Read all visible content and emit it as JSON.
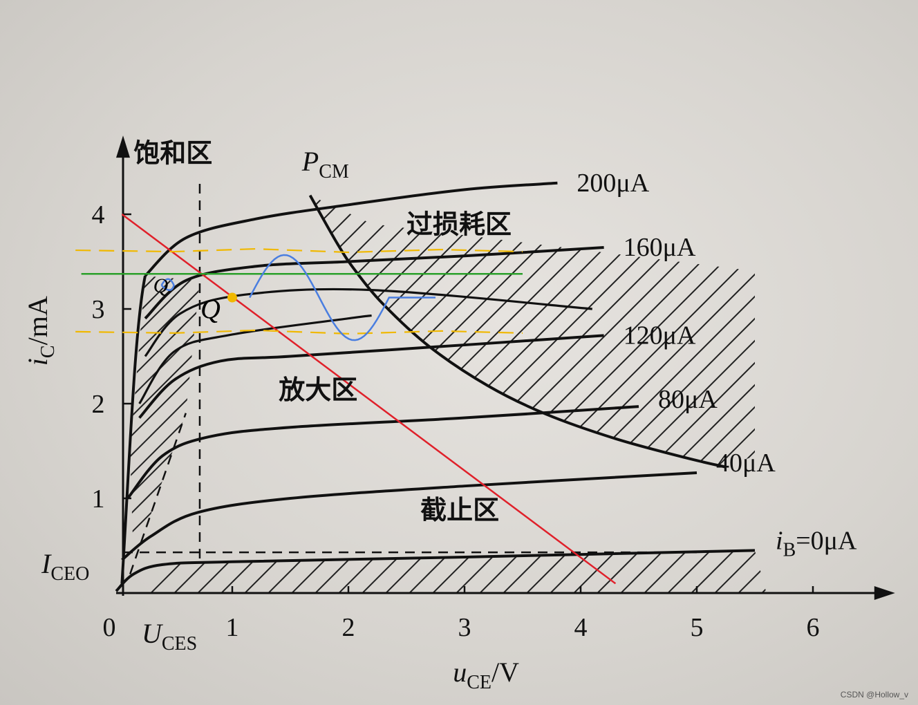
{
  "chart_data": {
    "type": "line",
    "xlabel": "u",
    "xlabel_sub": "CE",
    "xlabel_unit": "/V",
    "ylabel": "i",
    "ylabel_sub": "C",
    "ylabel_unit": "/mA",
    "xlim": [
      0,
      6.6
    ],
    "ylim": [
      0,
      4.7
    ],
    "x_ticks": [
      {
        "value": 0,
        "label": "0"
      },
      {
        "value": 1,
        "label": "1"
      },
      {
        "value": 2,
        "label": "2"
      },
      {
        "value": 3,
        "label": "3"
      },
      {
        "value": 4,
        "label": "4"
      },
      {
        "value": 5,
        "label": "5"
      },
      {
        "value": 6,
        "label": "6"
      }
    ],
    "y_ticks": [
      {
        "value": 1,
        "label": "1"
      },
      {
        "value": 2,
        "label": "2"
      },
      {
        "value": 3,
        "label": "3"
      },
      {
        "value": 4,
        "label": "4"
      }
    ],
    "uces_label": "U",
    "uces_sub": "CES",
    "uces_value": 0.72,
    "iceo_label": "I",
    "iceo_sub": "CEO",
    "iceo_value": 0.43,
    "series": [
      {
        "name": "0μA",
        "points": [
          [
            0,
            0.02
          ],
          [
            0.15,
            0.2
          ],
          [
            0.4,
            0.3
          ],
          [
            1,
            0.33
          ],
          [
            3,
            0.38
          ],
          [
            5.5,
            0.45
          ]
        ]
      },
      {
        "name": "40μA",
        "points": [
          [
            0.05,
            0.35
          ],
          [
            0.3,
            0.6
          ],
          [
            0.7,
            0.85
          ],
          [
            1.5,
            1.0
          ],
          [
            3,
            1.13
          ],
          [
            5,
            1.27
          ]
        ]
      },
      {
        "name": "80μA",
        "points": [
          [
            0.1,
            1.0
          ],
          [
            0.4,
            1.45
          ],
          [
            0.8,
            1.65
          ],
          [
            1.5,
            1.75
          ],
          [
            3,
            1.85
          ],
          [
            4.5,
            1.97
          ]
        ]
      },
      {
        "name": "120μA",
        "points": [
          [
            0.2,
            1.85
          ],
          [
            0.5,
            2.25
          ],
          [
            0.9,
            2.45
          ],
          [
            1.5,
            2.5
          ],
          [
            3,
            2.62
          ],
          [
            4.2,
            2.72
          ]
        ]
      },
      {
        "name": "160μA",
        "points": [
          [
            0.25,
            2.9
          ],
          [
            0.6,
            3.3
          ],
          [
            1.2,
            3.45
          ],
          [
            2,
            3.5
          ],
          [
            3,
            3.56
          ],
          [
            4.2,
            3.65
          ]
        ]
      },
      {
        "name": "200μA",
        "points": [
          [
            0.25,
            3.35
          ],
          [
            0.6,
            3.75
          ],
          [
            1.2,
            3.95
          ],
          [
            2,
            4.1
          ],
          [
            3,
            4.26
          ],
          [
            3.8,
            4.33
          ]
        ]
      }
    ],
    "extra_curves": [
      [
        [
          0.2,
          2.0
        ],
        [
          0.5,
          2.55
        ],
        [
          1.0,
          2.73
        ],
        [
          2.0,
          2.9
        ],
        [
          2.2,
          2.93
        ]
      ],
      [
        [
          0.25,
          2.5
        ],
        [
          0.55,
          2.95
        ],
        [
          1.1,
          3.15
        ],
        [
          2.2,
          3.2
        ],
        [
          4.1,
          3.0
        ]
      ]
    ],
    "pcm_label": "P",
    "pcm_sub": "CM",
    "pcm_curve": [
      [
        1.67,
        4.2
      ],
      [
        1.9,
        3.7
      ],
      [
        2.05,
        3.42
      ],
      [
        2.3,
        3.05
      ],
      [
        2.7,
        2.6
      ],
      [
        3.2,
        2.19
      ],
      [
        3.7,
        1.89
      ],
      [
        4.3,
        1.63
      ],
      [
        4.9,
        1.43
      ],
      [
        5.25,
        1.33
      ]
    ],
    "load_line": {
      "x0": 0.05,
      "y0": 4.0,
      "x1": 4.3,
      "y1": 0.1,
      "color": "#e0202a"
    },
    "q_point": {
      "x": 1.0,
      "y": 3.12,
      "label": "Q",
      "color": "#f0b800"
    },
    "q2_label": "Q",
    "q2_point": {
      "x": 0.45,
      "y": 3.25
    },
    "green_line": {
      "y": 3.37,
      "x0": -0.3,
      "x1": 3.5,
      "color": "#2aa02a"
    },
    "orange_bands": [
      3.62,
      2.76
    ],
    "annotation_color_blue": "#4a7ee0",
    "annotation_color_orange": "#f0b800",
    "regions": {
      "saturation": "饱和区",
      "overloss": "过损耗区",
      "amplify": "放大区",
      "cutoff": "截止区"
    },
    "label_texts": {
      "s200": "200μA",
      "s160": "160μA",
      "s120": "120μA",
      "s80": "80μA",
      "s40": "40μA",
      "ib_prefix": "i",
      "ib_sub": "B",
      "s0": "=0μA"
    }
  },
  "watermark": "CSDN @Hollow_v"
}
